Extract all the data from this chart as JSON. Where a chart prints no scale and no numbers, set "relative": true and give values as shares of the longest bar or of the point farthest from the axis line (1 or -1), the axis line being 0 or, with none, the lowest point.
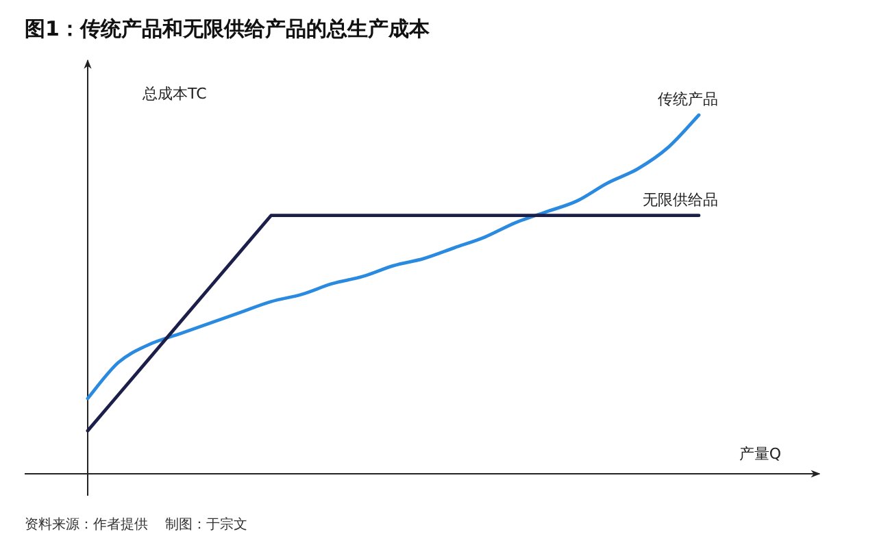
{
  "chart_data": {
    "type": "line",
    "relative": true,
    "title": "图1：传统产品和无限供给产品的总生产成本",
    "ylabel": "总成本TC",
    "xlabel": "产量Q",
    "annotations": [
      "资料来源：作者提供    制图：于宗文"
    ],
    "categories": [
      null,
      null,
      null,
      null,
      null,
      null,
      null,
      null,
      null,
      null,
      null,
      null,
      null,
      null,
      null,
      null,
      null,
      null,
      null,
      null,
      null
    ],
    "marker": "none",
    "series": [
      {
        "name": "传统产品",
        "color": "#2a8ae0",
        "values": [
          0.21,
          0.31,
          0.36,
          0.39,
          0.42,
          0.45,
          0.48,
          0.5,
          0.53,
          0.55,
          0.58,
          0.6,
          0.63,
          0.66,
          0.7,
          0.73,
          0.76,
          0.81,
          0.85,
          0.91,
          1
        ]
      },
      {
        "name": "无限供给品",
        "color": "#1c1f4a",
        "values": [
          0.12,
          0.22,
          0.32,
          0.42,
          0.52,
          0.62,
          0.72,
          0.72,
          0.72,
          0.72,
          0.72,
          0.72,
          0.72,
          0.72,
          0.72,
          0.72,
          0.72,
          0.72,
          0.72,
          0.72,
          0.72
        ]
      }
    ]
  }
}
